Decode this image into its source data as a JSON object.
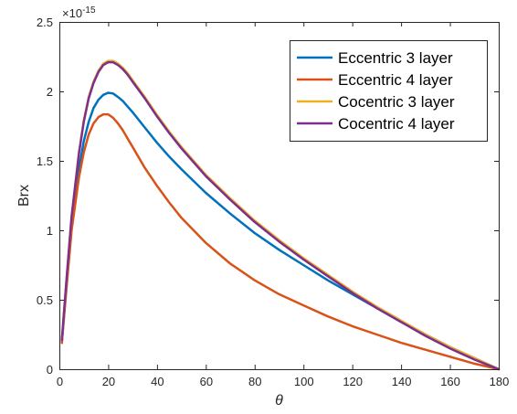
{
  "chart_data": {
    "type": "line",
    "title": "",
    "xlabel": "θ",
    "ylabel": "Brx",
    "exponent_label": "×10",
    "exponent_power": "-15",
    "xlim": [
      0,
      180
    ],
    "ylim": [
      0,
      2.5
    ],
    "x_ticks": [
      0,
      20,
      40,
      60,
      80,
      100,
      120,
      140,
      160,
      180
    ],
    "y_ticks": [
      0,
      0.5,
      1,
      1.5,
      2,
      2.5
    ],
    "grid": false,
    "legend_position": "top-right",
    "series": [
      {
        "name": "Eccentric 3 layer",
        "color": "#0072BD",
        "x": [
          1,
          3,
          5,
          8,
          10,
          12,
          14,
          16,
          18,
          20,
          22,
          24,
          26,
          28,
          30,
          35,
          40,
          45,
          50,
          60,
          70,
          80,
          90,
          100,
          110,
          120,
          130,
          140,
          150,
          160,
          170,
          180
        ],
        "y": [
          0.19,
          0.62,
          1.03,
          1.44,
          1.64,
          1.78,
          1.88,
          1.94,
          1.975,
          1.99,
          1.985,
          1.96,
          1.93,
          1.89,
          1.85,
          1.74,
          1.63,
          1.53,
          1.44,
          1.27,
          1.12,
          0.98,
          0.86,
          0.75,
          0.64,
          0.54,
          0.44,
          0.34,
          0.25,
          0.16,
          0.08,
          0.0
        ]
      },
      {
        "name": "Eccentric 4 layer",
        "color": "#D95319",
        "x": [
          1,
          3,
          5,
          8,
          10,
          12,
          14,
          16,
          18,
          20,
          22,
          24,
          26,
          28,
          30,
          35,
          40,
          45,
          50,
          60,
          70,
          80,
          90,
          100,
          110,
          120,
          130,
          140,
          150,
          160,
          170,
          180
        ],
        "y": [
          0.19,
          0.6,
          1.0,
          1.38,
          1.56,
          1.69,
          1.77,
          1.815,
          1.835,
          1.835,
          1.81,
          1.77,
          1.72,
          1.66,
          1.6,
          1.45,
          1.32,
          1.2,
          1.09,
          0.91,
          0.76,
          0.64,
          0.54,
          0.46,
          0.38,
          0.31,
          0.25,
          0.19,
          0.14,
          0.09,
          0.04,
          0.0
        ]
      },
      {
        "name": "Cocentric 3 layer",
        "color": "#EDB120",
        "x": [
          1,
          3,
          5,
          8,
          10,
          12,
          14,
          16,
          18,
          20,
          22,
          24,
          26,
          28,
          30,
          35,
          40,
          45,
          50,
          60,
          70,
          80,
          90,
          100,
          110,
          120,
          130,
          140,
          150,
          160,
          170,
          180
        ],
        "y": [
          0.21,
          0.66,
          1.1,
          1.56,
          1.79,
          1.96,
          2.07,
          2.15,
          2.2,
          2.22,
          2.22,
          2.2,
          2.17,
          2.13,
          2.08,
          1.96,
          1.83,
          1.71,
          1.6,
          1.4,
          1.23,
          1.07,
          0.93,
          0.8,
          0.68,
          0.56,
          0.45,
          0.35,
          0.25,
          0.16,
          0.08,
          0.0
        ]
      },
      {
        "name": "Cocentric 4 layer",
        "color": "#7E2F8E",
        "x": [
          1,
          3,
          5,
          8,
          10,
          12,
          14,
          16,
          18,
          20,
          22,
          24,
          26,
          28,
          30,
          35,
          40,
          45,
          50,
          60,
          70,
          80,
          90,
          100,
          110,
          120,
          130,
          140,
          150,
          160,
          170,
          180
        ],
        "y": [
          0.21,
          0.66,
          1.1,
          1.55,
          1.78,
          1.95,
          2.06,
          2.14,
          2.19,
          2.21,
          2.21,
          2.19,
          2.16,
          2.12,
          2.07,
          1.95,
          1.82,
          1.7,
          1.59,
          1.39,
          1.22,
          1.06,
          0.92,
          0.79,
          0.67,
          0.55,
          0.44,
          0.34,
          0.24,
          0.15,
          0.07,
          0.0
        ]
      }
    ]
  }
}
